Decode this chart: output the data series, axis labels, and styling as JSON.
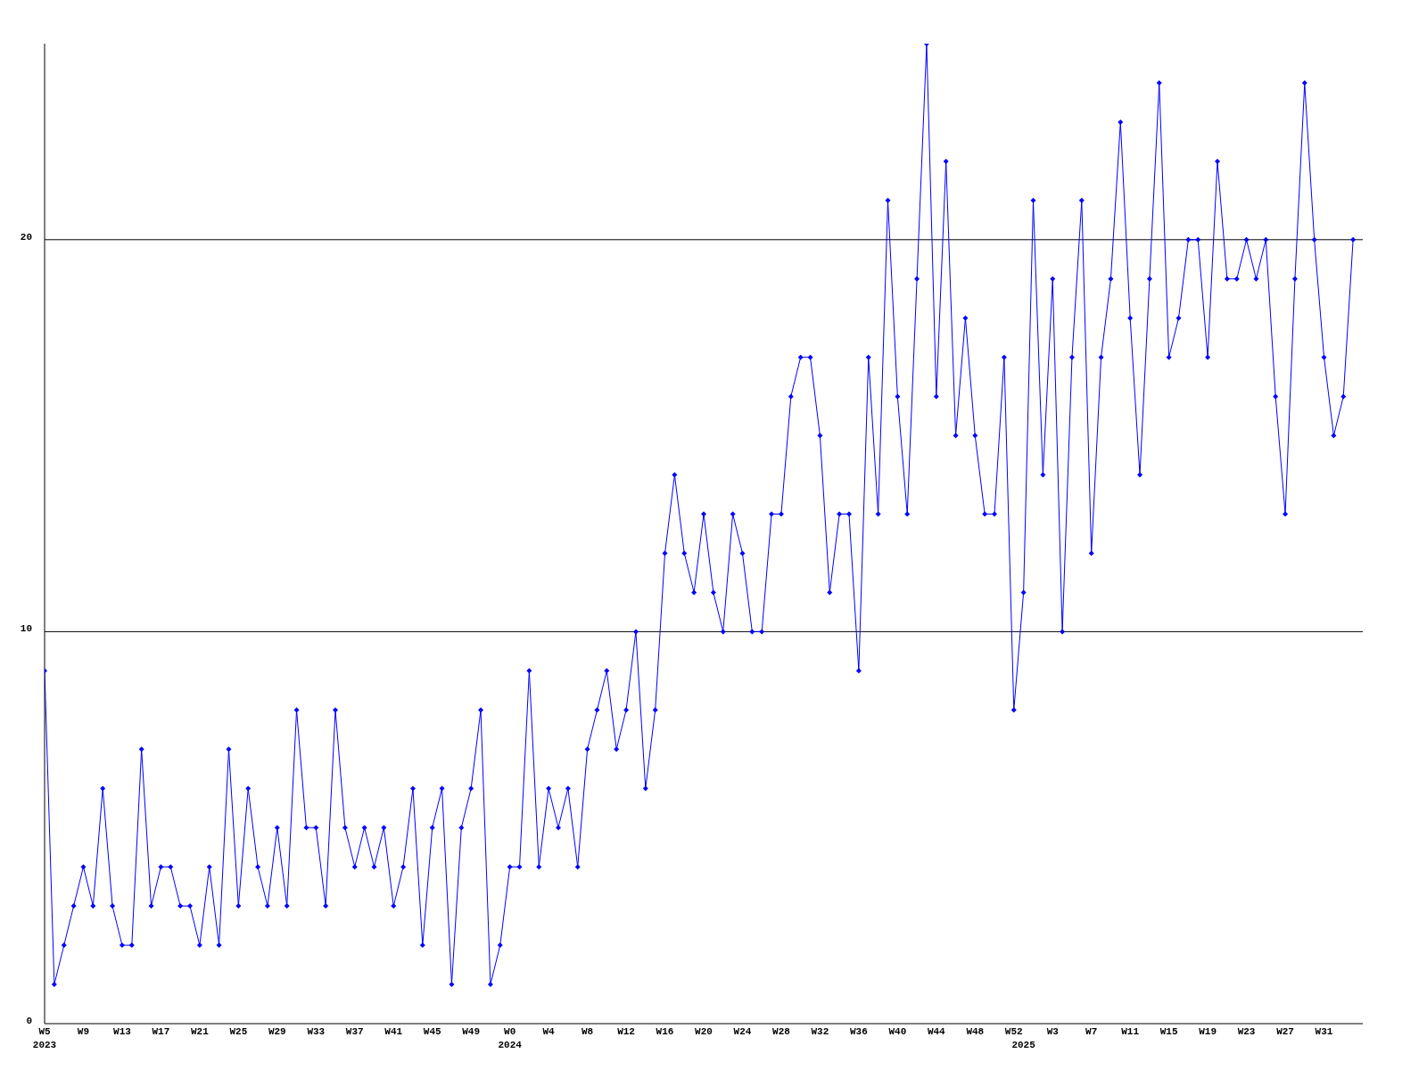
{
  "chart_data": {
    "type": "line",
    "categories": [
      "W5\n2023",
      null,
      null,
      null,
      "W9",
      null,
      null,
      null,
      "W13",
      null,
      null,
      null,
      "W17",
      null,
      null,
      null,
      "W21",
      null,
      null,
      null,
      "W25",
      null,
      null,
      null,
      "W29",
      null,
      null,
      null,
      "W33",
      null,
      null,
      null,
      "W37",
      null,
      null,
      null,
      "W41",
      null,
      null,
      null,
      "W45",
      null,
      null,
      null,
      "W49",
      null,
      null,
      null,
      "W0\n2024",
      null,
      null,
      null,
      "W4",
      null,
      null,
      null,
      "W8",
      null,
      null,
      null,
      "W12",
      null,
      null,
      null,
      "W16",
      null,
      null,
      null,
      "W20",
      null,
      null,
      null,
      "W24",
      null,
      null,
      null,
      "W28",
      null,
      null,
      null,
      "W32",
      null,
      null,
      null,
      "W36",
      null,
      null,
      null,
      "W40",
      null,
      null,
      null,
      "W44",
      null,
      null,
      null,
      "W48",
      null,
      null,
      null,
      "W52",
      "\n2025",
      null,
      null,
      "W3",
      null,
      null,
      null,
      "W7",
      null,
      null,
      null,
      "W11",
      null,
      null,
      null,
      "W15",
      null,
      null,
      null,
      "W19",
      null,
      null,
      null,
      "W23",
      null,
      null,
      null,
      "W27",
      null,
      null,
      null,
      "W31",
      null,
      null,
      null
    ],
    "series": [
      {
        "color": "#0000ff",
        "values": [
          9,
          1,
          2,
          3,
          4,
          3,
          6,
          3,
          2,
          2,
          7,
          3,
          4,
          4,
          3,
          3,
          2,
          4,
          2,
          7,
          3,
          6,
          4,
          3,
          5,
          3,
          8,
          5,
          5,
          3,
          8,
          5,
          4,
          5,
          4,
          5,
          3,
          4,
          6,
          2,
          5,
          6,
          1,
          5,
          6,
          8,
          1,
          2,
          4,
          4,
          9,
          4,
          6,
          5,
          6,
          4,
          7,
          8,
          9,
          7,
          8,
          10,
          6,
          8,
          12,
          14,
          12,
          11,
          13,
          11,
          10,
          13,
          12,
          10,
          10,
          13,
          13,
          16,
          17,
          17,
          15,
          11,
          13,
          13,
          9,
          17,
          13,
          21,
          16,
          13,
          19,
          25,
          16,
          22,
          15,
          18,
          15,
          13,
          13,
          17,
          8,
          11,
          21,
          14,
          19,
          10,
          17,
          21,
          12,
          17,
          19,
          23,
          18,
          14,
          19,
          24,
          17,
          18,
          20,
          20,
          17,
          22,
          19,
          19,
          20,
          19,
          20,
          16,
          13,
          19,
          24,
          20,
          17,
          15,
          16,
          20
        ]
      }
    ],
    "ylim": [
      0,
      25
    ],
    "yticks": [
      0,
      10,
      20
    ],
    "grid": "y",
    "marker": "diamond",
    "line_style": "solid"
  }
}
